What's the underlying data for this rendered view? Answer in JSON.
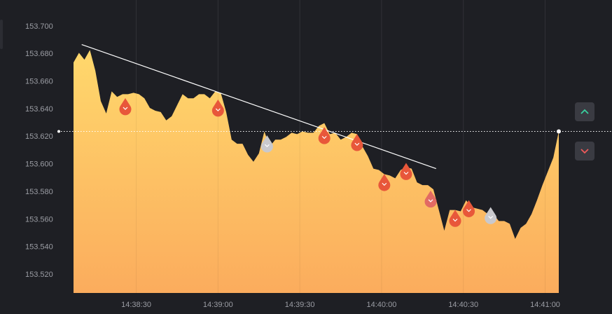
{
  "chart_data": {
    "type": "area",
    "x": [
      "14:38:07",
      "14:38:09",
      "14:38:11",
      "14:38:13",
      "14:38:15",
      "14:38:17",
      "14:38:19",
      "14:38:21",
      "14:38:23",
      "14:38:25",
      "14:38:27",
      "14:38:29",
      "14:38:31",
      "14:38:33",
      "14:38:35",
      "14:38:37",
      "14:38:39",
      "14:38:41",
      "14:38:43",
      "14:38:45",
      "14:38:47",
      "14:38:49",
      "14:38:51",
      "14:38:53",
      "14:38:55",
      "14:38:57",
      "14:38:59",
      "14:39:01",
      "14:39:03",
      "14:39:05",
      "14:39:07",
      "14:39:09",
      "14:39:11",
      "14:39:13",
      "14:39:15",
      "14:39:17",
      "14:39:19",
      "14:39:21",
      "14:39:23",
      "14:39:25",
      "14:39:27",
      "14:39:29",
      "14:39:31",
      "14:39:33",
      "14:39:35",
      "14:39:37",
      "14:39:39",
      "14:39:41",
      "14:39:43",
      "14:39:45",
      "14:39:47",
      "14:39:49",
      "14:39:51",
      "14:39:53",
      "14:39:55",
      "14:39:57",
      "14:39:59",
      "14:40:01",
      "14:40:03",
      "14:40:05",
      "14:40:07",
      "14:40:09",
      "14:40:11",
      "14:40:13",
      "14:40:15",
      "14:40:17",
      "14:40:19",
      "14:40:21",
      "14:40:23",
      "14:40:25",
      "14:40:27",
      "14:40:29",
      "14:40:31",
      "14:40:33",
      "14:40:35",
      "14:40:37",
      "14:40:39",
      "14:40:41",
      "14:40:43",
      "14:40:45",
      "14:40:47",
      "14:40:49",
      "14:40:51",
      "14:40:53",
      "14:40:55",
      "14:40:57",
      "14:40:59",
      "14:41:01",
      "14:41:03",
      "14:41:05"
    ],
    "values": [
      153.674,
      153.681,
      153.676,
      153.683,
      153.668,
      153.646,
      153.637,
      153.653,
      153.649,
      153.651,
      153.651,
      153.652,
      153.651,
      153.648,
      153.641,
      153.639,
      153.638,
      153.632,
      153.635,
      153.643,
      153.651,
      153.648,
      153.648,
      153.651,
      153.651,
      153.648,
      153.653,
      153.652,
      153.638,
      153.618,
      153.615,
      153.615,
      153.607,
      153.602,
      153.608,
      153.624,
      153.613,
      153.618,
      153.618,
      153.62,
      153.623,
      153.622,
      153.624,
      153.623,
      153.623,
      153.628,
      153.63,
      153.622,
      153.623,
      153.618,
      153.62,
      153.623,
      153.622,
      153.613,
      153.606,
      153.597,
      153.596,
      153.593,
      153.592,
      153.59,
      153.596,
      153.598,
      153.597,
      153.587,
      153.585,
      153.585,
      153.582,
      153.567,
      153.552,
      153.567,
      153.567,
      153.566,
      153.574,
      153.569,
      153.568,
      153.567,
      153.564,
      153.564,
      153.559,
      153.559,
      153.557,
      153.546,
      153.554,
      153.557,
      153.564,
      153.574,
      153.585,
      153.595,
      153.605,
      153.624
    ],
    "xlim": [
      "14:38:07",
      "14:41:05"
    ],
    "xticks": [
      "14:38:30",
      "14:39:00",
      "14:39:30",
      "14:40:00",
      "14:40:30",
      "14:41:00"
    ],
    "ylim": [
      153.5068,
      153.7193
    ],
    "yticks": [
      {
        "value": 153.52,
        "label": "153.520"
      },
      {
        "value": 153.54,
        "label": "153.540"
      },
      {
        "value": 153.56,
        "label": "153.560"
      },
      {
        "value": 153.58,
        "label": "153.580"
      },
      {
        "value": 153.6,
        "label": "153.600"
      },
      {
        "value": 153.62,
        "label": "153.620"
      },
      {
        "value": 153.64,
        "label": "153.640"
      },
      {
        "value": 153.66,
        "label": "153.660"
      },
      {
        "value": 153.68,
        "label": "153.680"
      },
      {
        "value": 153.7,
        "label": "153.700"
      }
    ],
    "xgrid": true,
    "ygrid": false,
    "current_price": 153.624,
    "trendline": {
      "x": [
        "14:38:10",
        "14:40:20"
      ],
      "values": [
        153.687,
        153.597
      ]
    },
    "markers": [
      {
        "x": "14:38:26",
        "value": 153.642,
        "color": "#e8573a"
      },
      {
        "x": "14:39:00",
        "value": 153.641,
        "color": "#e8573a"
      },
      {
        "x": "14:39:18",
        "value": 153.615,
        "color": "#c9c9cd"
      },
      {
        "x": "14:39:39",
        "value": 153.621,
        "color": "#e8573a"
      },
      {
        "x": "14:39:51",
        "value": 153.616,
        "color": "#e8573a"
      },
      {
        "x": "14:40:01",
        "value": 153.587,
        "color": "#e8573a"
      },
      {
        "x": "14:40:09",
        "value": 153.595,
        "color": "#e8573a"
      },
      {
        "x": "14:40:18",
        "value": 153.575,
        "color": "#e26a63"
      },
      {
        "x": "14:40:27",
        "value": 153.561,
        "color": "#e8573a"
      },
      {
        "x": "14:40:32",
        "value": 153.568,
        "color": "#e8573a"
      },
      {
        "x": "14:40:40",
        "value": 153.563,
        "color": "#c9c9cd"
      }
    ]
  }
}
